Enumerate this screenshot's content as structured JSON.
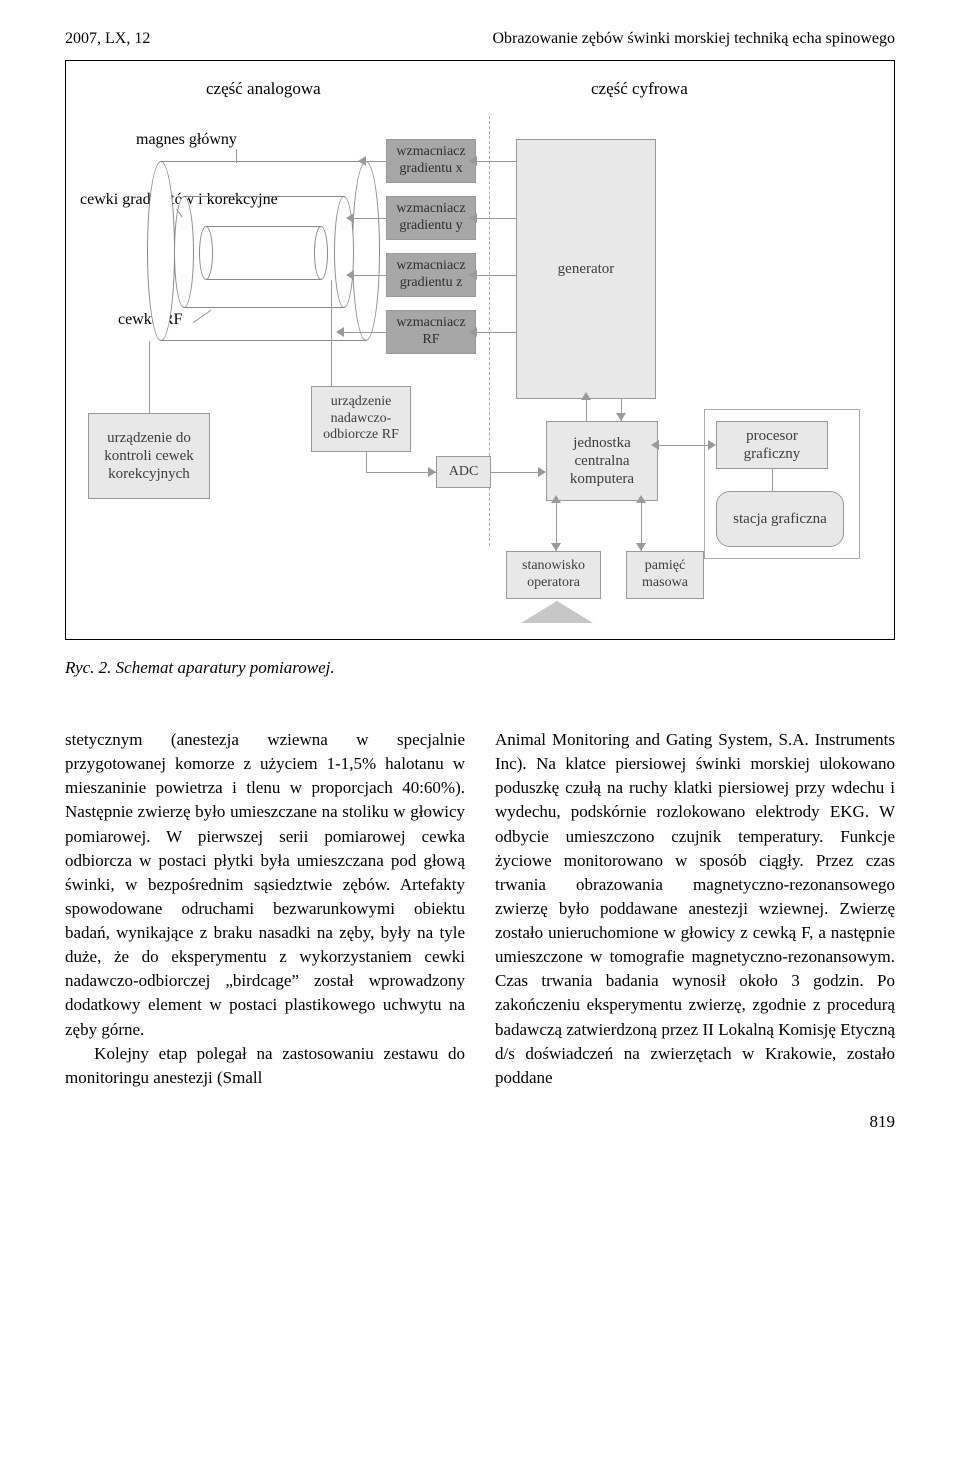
{
  "header": {
    "left": "2007, LX, 12",
    "right": "Obrazowanie zębów świnki morskiej techniką echa spinowego"
  },
  "diagram": {
    "section_left": "część analogowa",
    "section_right": "część cyfrowa",
    "label_magnes": "magnes główny",
    "label_cewki": "cewki gradientów i korekcyjne",
    "label_cewka_rf": "cewka RF",
    "box_wx": "wzmacniacz gradientu x",
    "box_wy": "wzmacniacz gradientu y",
    "box_wz": "wzmacniacz gradientu z",
    "box_wrf": "wzmacniacz RF",
    "box_nadawczo": "urządzenie nadawczo-odbiorcze RF",
    "box_kontrola": "urządzenie do kontroli cewek korekcyjnych",
    "box_adc": "ADC",
    "box_generator": "generator",
    "box_jednostka": "jednostka centralna komputera",
    "box_procesor": "procesor graficzny",
    "box_stacja": "stacja graficzna",
    "box_stanowisko": "stanowisko operatora",
    "box_pamiec": "pamięć masowa"
  },
  "caption": "Ryc. 2. Schemat aparatury pomiarowej.",
  "body": {
    "left": "stetycznym (anestezja wziewna w specjalnie przygotowanej komorze z użyciem 1-1,5% halotanu w mieszaninie powietrza i tlenu w proporcjach 40:60%). Następnie zwierzę było umieszczane na stoliku w głowicy pomiarowej. W pierwszej serii pomiarowej cewka odbiorcza w postaci płytki była umieszczana pod głową świnki, w bezpośrednim sąsiedztwie zębów. Artefakty spowodowane odruchami bezwarunkowymi obiektu badań, wynikające z braku nasadki na zęby, były na tyle duże, że do eksperymentu z wykorzystaniem cewki nadawczo-odbiorczej „birdcage” został wprowadzony dodatkowy element w postaci plastikowego uchwytu na zęby górne.\n   Kolejny etap polegał na zastosowaniu zestawu do monitoringu anestezji (Small",
    "right": "Animal Monitoring and Gating System, S.A. Instruments Inc). Na klatce piersiowej świnki morskiej ulokowano poduszkę czułą na ruchy klatki piersiowej przy wdechu i wydechu, podskórnie rozlokowano elektrody EKG. W odbycie umieszczono czujnik temperatury. Funkcje życiowe monitorowano w sposób ciągły. Przez czas trwania obrazowania magnetyczno-rezonansowego zwierzę było poddawane anestezji wziewnej. Zwierzę zostało unieruchomione w głowicy z cewką F, a następnie umieszczone w tomografie magnetyczno-rezonansowym. Czas trwania badania wynosił około 3 godzin. Po zakończeniu eksperymentu zwierzę, zgodnie z procedurą badawczą zatwierdzoną przez II Lokalną Komisję Etyczną d/s doświadczeń na zwierzętach w Krakowie, zostało poddane"
  },
  "page_number": "819"
}
